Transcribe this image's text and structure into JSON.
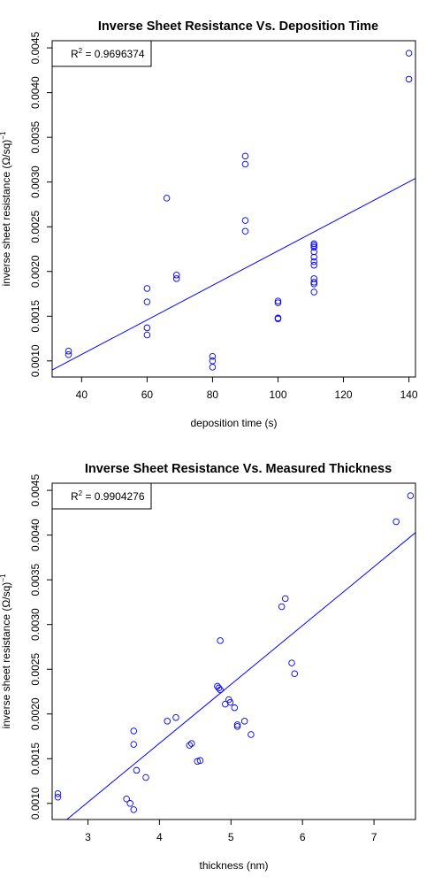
{
  "chart_data": [
    {
      "type": "scatter",
      "title": "Inverse Sheet Resistance Vs. Deposition Time",
      "xlabel": "deposition time (s)",
      "ylabel": "inverse sheet resistance (Ω/sq)",
      "ylabel_exponent": "−1",
      "xlim": [
        31,
        142
      ],
      "ylim": [
        0.00082,
        0.00458
      ],
      "x_ticks": [
        40,
        60,
        80,
        100,
        120,
        140
      ],
      "y_ticks": [
        0.001,
        0.0015,
        0.002,
        0.0025,
        0.003,
        0.0035,
        0.004,
        0.0045
      ],
      "y_tick_labels": [
        "0.0010",
        "0.0015",
        "0.0020",
        "0.0025",
        "0.0030",
        "0.0035",
        "0.0040",
        "0.0045"
      ],
      "legend": {
        "position": "top-left",
        "r2_label": "R",
        "r2_exp": "2",
        "r2_value": "= 0.9696374"
      },
      "fit_line": {
        "slope": 1.93e-05,
        "intercept": 0.0003
      },
      "points": [
        {
          "x": 36,
          "y": 0.00111
        },
        {
          "x": 36,
          "y": 0.00107
        },
        {
          "x": 60,
          "y": 0.00181
        },
        {
          "x": 60,
          "y": 0.00166
        },
        {
          "x": 60,
          "y": 0.00137
        },
        {
          "x": 60,
          "y": 0.00129
        },
        {
          "x": 66,
          "y": 0.00282
        },
        {
          "x": 69,
          "y": 0.00196
        },
        {
          "x": 69,
          "y": 0.00192
        },
        {
          "x": 80,
          "y": 0.00105
        },
        {
          "x": 80,
          "y": 0.001
        },
        {
          "x": 80,
          "y": 0.00093
        },
        {
          "x": 90,
          "y": 0.00329
        },
        {
          "x": 90,
          "y": 0.0032
        },
        {
          "x": 90,
          "y": 0.00257
        },
        {
          "x": 90,
          "y": 0.00245
        },
        {
          "x": 100,
          "y": 0.00167
        },
        {
          "x": 100,
          "y": 0.00165
        },
        {
          "x": 100,
          "y": 0.00148
        },
        {
          "x": 100,
          "y": 0.00147
        },
        {
          "x": 111,
          "y": 0.00231
        },
        {
          "x": 111,
          "y": 0.00229
        },
        {
          "x": 111,
          "y": 0.00227
        },
        {
          "x": 111,
          "y": 0.00222
        },
        {
          "x": 111,
          "y": 0.00216
        },
        {
          "x": 111,
          "y": 0.00211
        },
        {
          "x": 111,
          "y": 0.00207
        },
        {
          "x": 111,
          "y": 0.00192
        },
        {
          "x": 111,
          "y": 0.00188
        },
        {
          "x": 111,
          "y": 0.00186
        },
        {
          "x": 111,
          "y": 0.00177
        },
        {
          "x": 140,
          "y": 0.00444
        },
        {
          "x": 140,
          "y": 0.00415
        }
      ]
    },
    {
      "type": "scatter",
      "title": "Inverse Sheet Resistance Vs. Measured Thickness",
      "xlabel": "thickness (nm)",
      "ylabel": "inverse sheet resistance (Ω/sq)",
      "ylabel_exponent": "−1",
      "xlim": [
        2.5,
        7.58
      ],
      "ylim": [
        0.00082,
        0.00458
      ],
      "x_ticks": [
        3,
        4,
        5,
        6,
        7
      ],
      "y_ticks": [
        0.001,
        0.0015,
        0.002,
        0.0025,
        0.003,
        0.0035,
        0.004,
        0.0045
      ],
      "y_tick_labels": [
        "0.0010",
        "0.0015",
        "0.0020",
        "0.0025",
        "0.0030",
        "0.0035",
        "0.0040",
        "0.0045"
      ],
      "legend": {
        "position": "top-left",
        "r2_label": "R",
        "r2_exp": "2",
        "r2_value": "= 0.9904276"
      },
      "fit_line": {
        "slope": 0.000658,
        "intercept": -0.00096
      },
      "points": [
        {
          "x": 2.58,
          "y": 0.00111
        },
        {
          "x": 2.58,
          "y": 0.00107
        },
        {
          "x": 3.54,
          "y": 0.00105
        },
        {
          "x": 3.59,
          "y": 0.001
        },
        {
          "x": 3.64,
          "y": 0.00181
        },
        {
          "x": 3.64,
          "y": 0.00166
        },
        {
          "x": 3.64,
          "y": 0.00093
        },
        {
          "x": 3.68,
          "y": 0.00137
        },
        {
          "x": 3.81,
          "y": 0.00129
        },
        {
          "x": 4.11,
          "y": 0.00192
        },
        {
          "x": 4.23,
          "y": 0.00196
        },
        {
          "x": 4.42,
          "y": 0.00165
        },
        {
          "x": 4.45,
          "y": 0.00167
        },
        {
          "x": 4.53,
          "y": 0.00147
        },
        {
          "x": 4.57,
          "y": 0.00148
        },
        {
          "x": 4.81,
          "y": 0.00231
        },
        {
          "x": 4.83,
          "y": 0.00229
        },
        {
          "x": 4.85,
          "y": 0.00227
        },
        {
          "x": 4.85,
          "y": 0.00282
        },
        {
          "x": 4.92,
          "y": 0.00211
        },
        {
          "x": 4.97,
          "y": 0.00216
        },
        {
          "x": 4.99,
          "y": 0.00213
        },
        {
          "x": 5.05,
          "y": 0.00207
        },
        {
          "x": 5.09,
          "y": 0.00188
        },
        {
          "x": 5.09,
          "y": 0.00186
        },
        {
          "x": 5.19,
          "y": 0.00192
        },
        {
          "x": 5.28,
          "y": 0.00177
        },
        {
          "x": 5.71,
          "y": 0.0032
        },
        {
          "x": 5.76,
          "y": 0.00329
        },
        {
          "x": 5.85,
          "y": 0.00257
        },
        {
          "x": 5.89,
          "y": 0.00245
        },
        {
          "x": 7.31,
          "y": 0.00415
        },
        {
          "x": 7.51,
          "y": 0.00444
        }
      ]
    }
  ]
}
